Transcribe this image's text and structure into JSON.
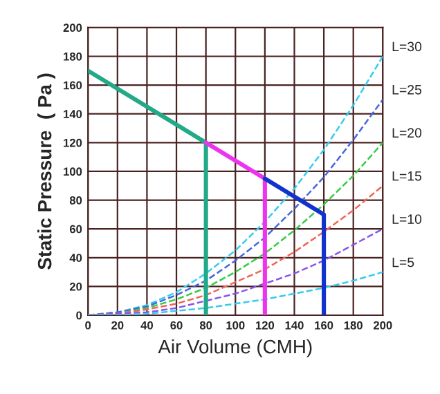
{
  "chart_data": {
    "type": "line",
    "xlabel": "Air Volume (CMH)",
    "ylabel": "Static Pressure  ( Pa )",
    "xlim": [
      0,
      200
    ],
    "ylim": [
      0,
      200
    ],
    "xticks": [
      0,
      20,
      40,
      60,
      80,
      100,
      120,
      140,
      160,
      180,
      200
    ],
    "yticks": [
      0,
      20,
      40,
      60,
      80,
      100,
      120,
      140,
      160,
      180,
      200
    ],
    "grid": true,
    "legend": false,
    "line_style": "dashed",
    "x": [
      0,
      20,
      40,
      60,
      80,
      100,
      120,
      140,
      160,
      180,
      200
    ],
    "series": [
      {
        "name": "L=30",
        "color": "#33ccee",
        "values": [
          0,
          2,
          7,
          16,
          29,
          45,
          65,
          88,
          115,
          146,
          180
        ]
      },
      {
        "name": "L=25",
        "color": "#4466dd",
        "values": [
          0,
          2,
          6,
          14,
          24,
          38,
          54,
          74,
          96,
          122,
          150
        ]
      },
      {
        "name": "L=20",
        "color": "#33cc44",
        "values": [
          0,
          1,
          5,
          11,
          19,
          30,
          43,
          59,
          77,
          97,
          120
        ]
      },
      {
        "name": "L=15",
        "color": "#ee6655",
        "values": [
          0,
          1,
          4,
          8,
          14,
          23,
          32,
          44,
          58,
          73,
          90
        ]
      },
      {
        "name": "L=10",
        "color": "#8855ee",
        "values": [
          0,
          1,
          2,
          5,
          10,
          15,
          22,
          29,
          38,
          49,
          60
        ]
      },
      {
        "name": "L=5",
        "color": "#33ccee",
        "values": [
          0,
          0,
          1,
          3,
          5,
          8,
          11,
          15,
          19,
          24,
          30
        ]
      },
      {
        "color": "#22aa88",
        "line_style": "solid",
        "x": [
          0,
          80,
          80
        ],
        "values": [
          170,
          120,
          0
        ]
      },
      {
        "color": "#ee33ee",
        "line_style": "solid",
        "x": [
          80,
          120,
          120
        ],
        "values": [
          120,
          95,
          0
        ]
      },
      {
        "color": "#1133cc",
        "line_style": "solid",
        "x": [
          120,
          160,
          160
        ],
        "values": [
          95,
          70,
          0
        ]
      }
    ]
  }
}
